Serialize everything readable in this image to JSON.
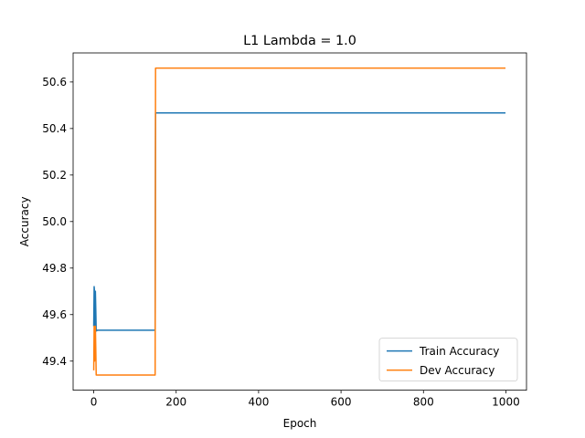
{
  "chart_data": {
    "type": "line",
    "title": "L1 Lambda = 1.0",
    "xlabel": "Epoch",
    "ylabel": "Accuracy",
    "xlim": [
      -50,
      1050
    ],
    "ylim": [
      49.275,
      50.725
    ],
    "xticks": [
      0,
      200,
      400,
      600,
      800,
      1000
    ],
    "xtick_labels": [
      "0",
      "200",
      "400",
      "600",
      "800",
      "1000"
    ],
    "yticks": [
      49.4,
      49.6,
      49.8,
      50.0,
      50.2,
      50.4,
      50.6
    ],
    "ytick_labels": [
      "49.4",
      "49.6",
      "49.8",
      "50.0",
      "50.2",
      "50.4",
      "50.6"
    ],
    "grid": false,
    "legend": "lower-right",
    "series": [
      {
        "name": "Train Accuracy",
        "color": "#1f77b4",
        "x": [
          0,
          1,
          2,
          3,
          4,
          5,
          6,
          7,
          8,
          148,
          149,
          150,
          999
        ],
        "y": [
          49.55,
          49.72,
          49.7,
          49.55,
          49.7,
          49.62,
          49.53,
          49.53,
          49.533,
          49.533,
          49.533,
          50.467,
          50.467
        ]
      },
      {
        "name": "Dev Accuracy",
        "color": "#ff7f0e",
        "x": [
          0,
          1,
          2,
          3,
          4,
          5,
          6,
          7,
          8,
          148,
          149,
          150,
          999
        ],
        "y": [
          49.36,
          49.55,
          49.4,
          49.48,
          49.55,
          49.45,
          49.34,
          49.34,
          49.34,
          49.34,
          49.34,
          50.66,
          50.66
        ]
      }
    ]
  }
}
